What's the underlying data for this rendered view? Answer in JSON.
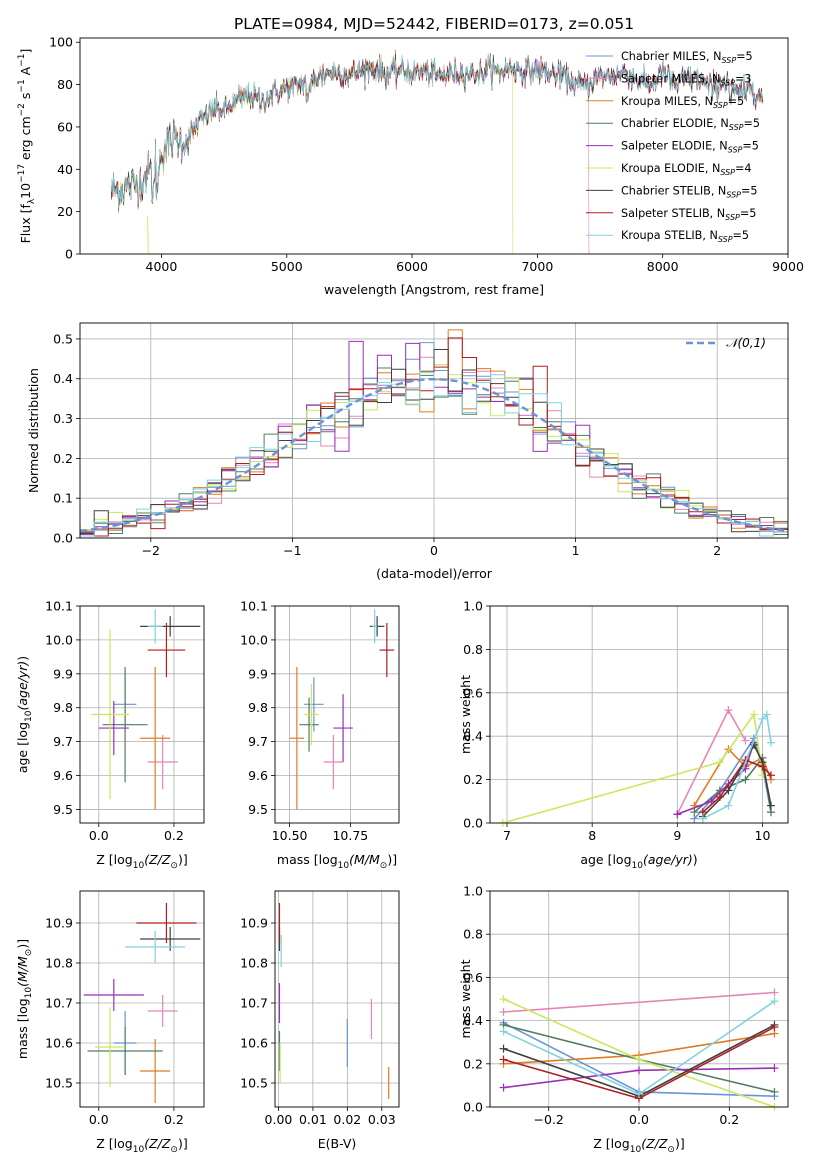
{
  "title": "PLATE=0984, MJD=52442, FIBERID=0173, z=0.051",
  "colors": {
    "chabrier_miles": "#6a93d8",
    "salpeter_miles": "#e885b8",
    "kroupa_miles": "#e07b25",
    "chabrier_elodie": "#4f7f5e",
    "salpeter_elodie": "#9a2fb8",
    "kroupa_elodie": "#c9e85c",
    "chabrier_stelib": "#404040",
    "salpeter_stelib": "#b01e1e",
    "kroupa_stelib": "#7fd3dd",
    "gauss": "#6a93d8",
    "grid": "#b0b0b0"
  },
  "chart_data": [
    {
      "id": "spectrum",
      "type": "line",
      "xlabel": "wavelength [Angstrom, rest frame]",
      "ylabel": "Flux [f",
      "ylabel_parts": [
        "Flux [f",
        "λ",
        "10",
        "−17",
        " erg cm",
        "−2",
        " s",
        "−1",
        " A",
        "−1",
        "]"
      ],
      "xlim": [
        3350,
        9000
      ],
      "ylim": [
        0,
        102
      ],
      "xticks": [
        4000,
        5000,
        6000,
        7000,
        8000,
        9000
      ],
      "yticks": [
        0,
        20,
        40,
        60,
        80,
        100
      ],
      "grid": false,
      "legend_position": "top-right",
      "legend": [
        {
          "label": "Chabrier MILES, N",
          "sub": "SSP",
          "suffix": "=5",
          "color_key": "chabrier_miles"
        },
        {
          "label": "Salpeter MILES, N",
          "sub": "SSP",
          "suffix": "=3",
          "color_key": "salpeter_miles"
        },
        {
          "label": "Kroupa MILES, N",
          "sub": "SSP",
          "suffix": "=5",
          "color_key": "kroupa_miles"
        },
        {
          "label": "Chabrier ELODIE, N",
          "sub": "SSP",
          "suffix": "=5",
          "color_key": "chabrier_elodie"
        },
        {
          "label": "Salpeter ELODIE, N",
          "sub": "SSP",
          "suffix": "=5",
          "color_key": "salpeter_elodie"
        },
        {
          "label": "Kroupa ELODIE, N",
          "sub": "SSP",
          "suffix": "=4",
          "color_key": "kroupa_elodie"
        },
        {
          "label": "Chabrier STELIB, N",
          "sub": "SSP",
          "suffix": "=5",
          "color_key": "chabrier_stelib"
        },
        {
          "label": "Salpeter STELIB, N",
          "sub": "SSP",
          "suffix": "=5",
          "color_key": "salpeter_stelib"
        },
        {
          "label": "Kroupa STELIB, N",
          "sub": "SSP",
          "suffix": "=5",
          "color_key": "kroupa_stelib"
        }
      ],
      "envelope": {
        "x": [
          3600,
          3700,
          3800,
          3900,
          4000,
          4100,
          4200,
          4300,
          4400,
          4500,
          4600,
          4700,
          4800,
          4900,
          5000,
          5100,
          5200,
          5300,
          5400,
          5500,
          5600,
          5700,
          5800,
          5900,
          6000,
          6100,
          6200,
          6300,
          6400,
          6500,
          6600,
          6700,
          6800,
          6900,
          7000,
          7100,
          7200,
          7300,
          7400,
          7500,
          7600,
          7700,
          7800,
          7900,
          8000,
          8100,
          8200,
          8300,
          8400,
          8500,
          8600,
          8700,
          8800
        ],
        "y": [
          30,
          31,
          33,
          38,
          48,
          55,
          53,
          62,
          68,
          68,
          72,
          75,
          72,
          76,
          78,
          80,
          82,
          85,
          86,
          84,
          87,
          88,
          85,
          87,
          86,
          86,
          84,
          85,
          86,
          85,
          88,
          86,
          88,
          86,
          87,
          85,
          84,
          80,
          80,
          84,
          84,
          86,
          82,
          80,
          86,
          80,
          83,
          82,
          78,
          82,
          75,
          80,
          73
        ]
      },
      "truncations": {
        "salpeter_miles": 7410,
        "kroupa_elodie": 6800
      }
    },
    {
      "id": "residuals",
      "type": "histogram",
      "xlabel": "(data-model)/error",
      "ylabel": "Normed distribution",
      "xlim": [
        -2.5,
        2.5
      ],
      "ylim": [
        0,
        0.54
      ],
      "xticks": [
        -2,
        -1,
        0,
        1,
        2
      ],
      "yticks": [
        0.0,
        0.1,
        0.2,
        0.3,
        0.4,
        0.5
      ],
      "grid": true,
      "bin_width": 0.1,
      "legend": [
        {
          "label": "𝒩(0,1)",
          "color_key": "gauss",
          "style": "dashed"
        }
      ],
      "legend_position": "top-right"
    },
    {
      "id": "age_vs_Z",
      "type": "scatter-errorbar",
      "xlabel": "Z [log",
      "ylabel": "age  [log",
      "xlim": [
        -0.05,
        0.28
      ],
      "ylim": [
        9.46,
        10.1
      ],
      "xticks": [
        0.0,
        0.2
      ],
      "yticks": [
        9.5,
        9.6,
        9.7,
        9.8,
        9.9,
        10.0,
        10.1
      ],
      "grid": true,
      "points": [
        {
          "c": "chabrier_miles",
          "x": 0.07,
          "xe": 0.03,
          "y": 9.81,
          "ye": 0.08
        },
        {
          "c": "salpeter_miles",
          "x": 0.17,
          "xe": 0.04,
          "y": 9.64,
          "ye": 0.08
        },
        {
          "c": "kroupa_miles",
          "x": 0.15,
          "xe": 0.04,
          "y": 9.71,
          "ye": 0.21
        },
        {
          "c": "chabrier_elodie",
          "x": 0.07,
          "xe": 0.06,
          "y": 9.75,
          "ye": 0.17
        },
        {
          "c": "salpeter_elodie",
          "x": 0.04,
          "xe": 0.04,
          "y": 9.74,
          "ye": 0.08
        },
        {
          "c": "kroupa_elodie",
          "x": 0.03,
          "xe": 0.05,
          "y": 9.78,
          "ye": 0.25
        },
        {
          "c": "chabrier_stelib",
          "x": 0.19,
          "xe": 0.08,
          "y": 10.04,
          "ye": 0.03
        },
        {
          "c": "salpeter_stelib",
          "x": 0.18,
          "xe": 0.05,
          "y": 9.97,
          "ye": 0.08
        },
        {
          "c": "kroupa_stelib",
          "x": 0.15,
          "xe": 0.02,
          "y": 10.04,
          "ye": 0.05
        }
      ]
    },
    {
      "id": "age_vs_mass",
      "type": "scatter-errorbar",
      "xlabel": "mass [log",
      "ylabel": "",
      "xlim": [
        10.44,
        10.95
      ],
      "ylim": [
        9.46,
        10.1
      ],
      "xticks": [
        10.5,
        10.75
      ],
      "yticks": [
        9.5,
        9.6,
        9.7,
        9.8,
        9.9,
        10.0,
        10.1
      ],
      "grid": true,
      "points": [
        {
          "c": "chabrier_miles",
          "x": 10.6,
          "xe": 0.04,
          "y": 9.81,
          "ye": 0.08
        },
        {
          "c": "salpeter_miles",
          "x": 10.68,
          "xe": 0.04,
          "y": 9.64,
          "ye": 0.08
        },
        {
          "c": "kroupa_miles",
          "x": 10.53,
          "xe": 0.03,
          "y": 9.71,
          "ye": 0.21
        },
        {
          "c": "chabrier_elodie",
          "x": 10.58,
          "xe": 0.04,
          "y": 9.75,
          "ye": 0.08
        },
        {
          "c": "salpeter_elodie",
          "x": 10.72,
          "xe": 0.04,
          "y": 9.74,
          "ye": 0.1
        },
        {
          "c": "kroupa_elodie",
          "x": 10.59,
          "xe": 0.03,
          "y": 9.78,
          "ye": 0.09
        },
        {
          "c": "chabrier_stelib",
          "x": 10.86,
          "xe": 0.03,
          "y": 10.04,
          "ye": 0.03
        },
        {
          "c": "salpeter_stelib",
          "x": 10.9,
          "xe": 0.03,
          "y": 9.97,
          "ye": 0.08
        },
        {
          "c": "kroupa_stelib",
          "x": 10.85,
          "xe": 0.01,
          "y": 10.04,
          "ye": 0.05
        }
      ]
    },
    {
      "id": "weight_vs_age",
      "type": "line",
      "xlabel": "age  [log",
      "ylabel": "mass weight",
      "xlim": [
        6.8,
        10.3
      ],
      "ylim": [
        0,
        1.0
      ],
      "xticks": [
        7,
        8,
        9,
        10
      ],
      "yticks": [
        0.0,
        0.2,
        0.4,
        0.6,
        0.8,
        1.0
      ],
      "grid": true,
      "series": [
        {
          "c": "chabrier_miles",
          "x": [
            9.2,
            9.5,
            9.9,
            10.0,
            10.1
          ],
          "y": [
            0.02,
            0.15,
            0.39,
            0.26,
            0.05
          ]
        },
        {
          "c": "salpeter_miles",
          "x": [
            9.0,
            9.6,
            9.8
          ],
          "y": [
            0.04,
            0.52,
            0.38
          ]
        },
        {
          "c": "kroupa_miles",
          "x": [
            9.2,
            9.6,
            9.8,
            10.0,
            10.1
          ],
          "y": [
            0.08,
            0.34,
            0.26,
            0.3,
            0.2
          ]
        },
        {
          "c": "chabrier_elodie",
          "x": [
            9.2,
            9.5,
            9.8,
            10.0,
            10.1
          ],
          "y": [
            0.05,
            0.15,
            0.2,
            0.3,
            0.05
          ]
        },
        {
          "c": "salpeter_elodie",
          "x": [
            9.0,
            9.4,
            9.6,
            9.8,
            9.9
          ],
          "y": [
            0.04,
            0.1,
            0.18,
            0.25,
            0.37
          ]
        },
        {
          "c": "kroupa_elodie",
          "x": [
            6.95,
            9.5,
            9.9,
            10.0
          ],
          "y": [
            0.0,
            0.28,
            0.5,
            0.22
          ]
        },
        {
          "c": "chabrier_stelib",
          "x": [
            9.3,
            9.6,
            9.9,
            10.0,
            10.1
          ],
          "y": [
            0.03,
            0.15,
            0.36,
            0.28,
            0.08
          ]
        },
        {
          "c": "salpeter_stelib",
          "x": [
            9.3,
            9.5,
            9.8,
            10.0,
            10.1
          ],
          "y": [
            0.05,
            0.12,
            0.29,
            0.26,
            0.22
          ]
        },
        {
          "c": "kroupa_stelib",
          "x": [
            9.3,
            9.6,
            10.0,
            10.05,
            10.1
          ],
          "y": [
            0.02,
            0.08,
            0.48,
            0.5,
            0.37
          ]
        }
      ]
    },
    {
      "id": "mass_vs_Z",
      "type": "scatter-errorbar",
      "xlabel": "Z [log",
      "ylabel": "mass [log",
      "xlim": [
        -0.05,
        0.28
      ],
      "ylim": [
        10.44,
        10.98
      ],
      "xticks": [
        0.0,
        0.2
      ],
      "yticks": [
        10.5,
        10.6,
        10.7,
        10.8,
        10.9
      ],
      "grid": true,
      "points": [
        {
          "c": "chabrier_miles",
          "x": 0.07,
          "xe": 0.03,
          "y": 10.6,
          "ye": 0.08
        },
        {
          "c": "salpeter_miles",
          "x": 0.17,
          "xe": 0.04,
          "y": 10.68,
          "ye": 0.04
        },
        {
          "c": "kroupa_miles",
          "x": 0.15,
          "xe": 0.04,
          "y": 10.53,
          "ye": 0.08
        },
        {
          "c": "chabrier_elodie",
          "x": 0.07,
          "xe": 0.1,
          "y": 10.58,
          "ye": 0.06
        },
        {
          "c": "salpeter_elodie",
          "x": 0.04,
          "xe": 0.08,
          "y": 10.72,
          "ye": 0.04
        },
        {
          "c": "kroupa_elodie",
          "x": 0.03,
          "xe": 0.04,
          "y": 10.59,
          "ye": 0.1
        },
        {
          "c": "chabrier_stelib",
          "x": 0.19,
          "xe": 0.08,
          "y": 10.86,
          "ye": 0.03
        },
        {
          "c": "salpeter_stelib",
          "x": 0.18,
          "xe": 0.08,
          "y": 10.9,
          "ye": 0.05
        },
        {
          "c": "kroupa_stelib",
          "x": 0.15,
          "xe": 0.08,
          "y": 10.84,
          "ye": 0.04
        }
      ]
    },
    {
      "id": "mass_vs_ebv",
      "type": "scatter-errorbar",
      "xlabel": "E(B-V)",
      "ylabel": "",
      "xlim": [
        -0.001,
        0.035
      ],
      "ylim": [
        10.44,
        10.98
      ],
      "xticks": [
        0.0,
        0.01,
        0.02,
        0.03
      ],
      "yticks": [
        10.5,
        10.6,
        10.7,
        10.8,
        10.9
      ],
      "grid": true,
      "points": [
        {
          "c": "chabrier_miles",
          "x": 0.02,
          "xe": 0,
          "y": 10.6,
          "ye": 0.06
        },
        {
          "c": "salpeter_miles",
          "x": 0.027,
          "xe": 0,
          "y": 10.66,
          "ye": 0.05
        },
        {
          "c": "kroupa_miles",
          "x": 0.032,
          "xe": 0,
          "y": 10.5,
          "ye": 0.04
        },
        {
          "c": "chabrier_elodie",
          "x": 0.0003,
          "xe": 0,
          "y": 10.58,
          "ye": 0.05
        },
        {
          "c": "salpeter_elodie",
          "x": 0.0003,
          "xe": 0,
          "y": 10.7,
          "ye": 0.05
        },
        {
          "c": "kroupa_elodie",
          "x": 0.0005,
          "xe": 0,
          "y": 10.55,
          "ye": 0.05
        },
        {
          "c": "chabrier_stelib",
          "x": 0.0003,
          "xe": 0,
          "y": 10.86,
          "ye": 0.03
        },
        {
          "c": "salpeter_stelib",
          "x": 0.0003,
          "xe": 0,
          "y": 10.9,
          "ye": 0.05
        },
        {
          "c": "kroupa_stelib",
          "x": 0.0008,
          "xe": 0,
          "y": 10.83,
          "ye": 0.04
        }
      ]
    },
    {
      "id": "weight_vs_Z",
      "type": "line",
      "xlabel": "Z [log",
      "ylabel": "mass weight",
      "xlim": [
        -0.33,
        0.33
      ],
      "ylim": [
        0,
        1.0
      ],
      "xticks": [
        -0.2,
        0.0,
        0.2
      ],
      "yticks": [
        0.0,
        0.2,
        0.4,
        0.6,
        0.8,
        1.0
      ],
      "grid": true,
      "series": [
        {
          "c": "chabrier_miles",
          "x": [
            -0.3,
            0.0,
            0.3
          ],
          "y": [
            0.39,
            0.07,
            0.05
          ]
        },
        {
          "c": "salpeter_miles",
          "x": [
            -0.3,
            0.3
          ],
          "y": [
            0.44,
            0.53
          ]
        },
        {
          "c": "kroupa_miles",
          "x": [
            -0.3,
            0.0,
            0.3
          ],
          "y": [
            0.2,
            0.24,
            0.34
          ]
        },
        {
          "c": "chabrier_elodie",
          "x": [
            -0.3,
            0.0,
            0.3
          ],
          "y": [
            0.38,
            0.22,
            0.07
          ]
        },
        {
          "c": "salpeter_elodie",
          "x": [
            -0.3,
            0.0,
            0.3
          ],
          "y": [
            0.09,
            0.17,
            0.18
          ]
        },
        {
          "c": "kroupa_elodie",
          "x": [
            -0.3,
            0.0,
            0.3
          ],
          "y": [
            0.5,
            0.22,
            0.0
          ]
        },
        {
          "c": "chabrier_stelib",
          "x": [
            -0.3,
            0.0,
            0.3
          ],
          "y": [
            0.27,
            0.05,
            0.38
          ]
        },
        {
          "c": "salpeter_stelib",
          "x": [
            -0.3,
            0.0,
            0.3
          ],
          "y": [
            0.22,
            0.04,
            0.37
          ]
        },
        {
          "c": "kroupa_stelib",
          "x": [
            -0.3,
            0.0,
            0.3
          ],
          "y": [
            0.35,
            0.06,
            0.49
          ]
        }
      ]
    }
  ]
}
